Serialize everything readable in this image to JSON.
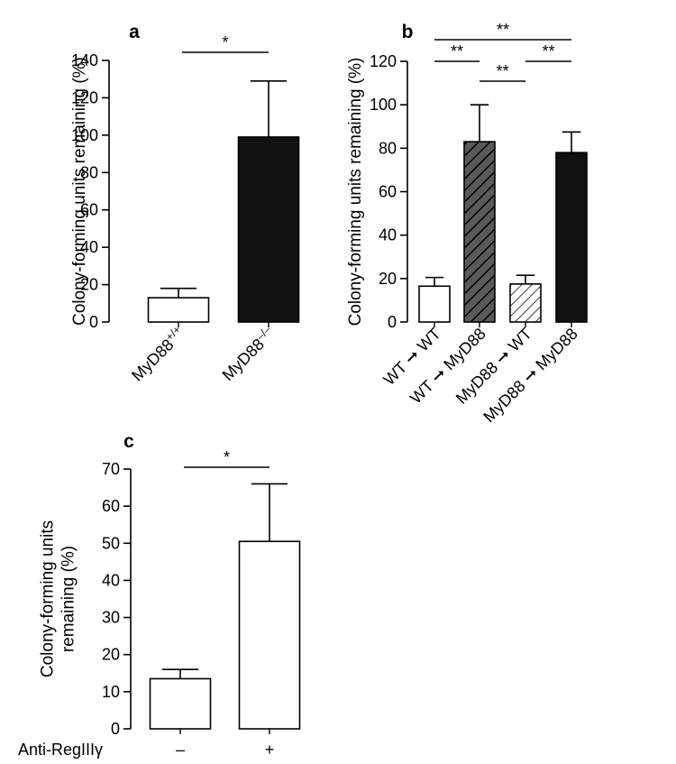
{
  "chart_data": [
    {
      "type": "bar",
      "panel": "a",
      "ylabel": "Colony-forming units remaining (%)",
      "ylabel_lines": [
        "Colony-forming units remaining (%)"
      ],
      "ylim": [
        0,
        140
      ],
      "yticks": [
        0,
        20,
        40,
        60,
        80,
        100,
        120,
        140
      ],
      "categories": [
        {
          "base": "MyD88",
          "sup": "+/+"
        },
        {
          "base": "MyD88",
          "sup": "–/–"
        }
      ],
      "values": [
        13,
        99
      ],
      "errors": [
        5,
        30
      ],
      "fills": [
        "white",
        "black"
      ],
      "significance": [
        {
          "from": 0,
          "to": 1,
          "label": "*"
        }
      ]
    },
    {
      "type": "bar",
      "panel": "b",
      "ylabel": "Colony-forming units remaining (%)",
      "ylabel_lines": [
        "Colony-forming units remaining (%)"
      ],
      "ylim": [
        0,
        120
      ],
      "yticks": [
        0,
        20,
        40,
        60,
        80,
        100,
        120
      ],
      "categories": [
        {
          "base": "WT ➞ WT"
        },
        {
          "base": "WT ➞ MyD88"
        },
        {
          "base": "MyD88 ➞ WT"
        },
        {
          "base": "MyD88 ➞ MyD88"
        }
      ],
      "values": [
        16.5,
        83,
        17.5,
        78
      ],
      "errors": [
        4,
        17,
        4,
        9.5
      ],
      "fills": [
        "white",
        "hatch-dark",
        "hatch-light",
        "black"
      ],
      "significance": [
        {
          "from": 0,
          "to": 3,
          "label": "**",
          "level": 3
        },
        {
          "from": 0,
          "to": 1,
          "label": "**",
          "level": 2
        },
        {
          "from": 2,
          "to": 3,
          "label": "**",
          "level": 2
        },
        {
          "from": 1,
          "to": 2,
          "label": "**",
          "level": 1
        }
      ]
    },
    {
      "type": "bar",
      "panel": "c",
      "ylabel": "Colony-forming units remaining (%)",
      "ylabel_lines": [
        "Colony-forming units",
        "remaining (%)"
      ],
      "ylim": [
        0,
        70
      ],
      "yticks": [
        0,
        10,
        20,
        30,
        40,
        50,
        60,
        70
      ],
      "row_label": "Anti-RegIIIγ",
      "categories": [
        {
          "base": "–"
        },
        {
          "base": "+"
        }
      ],
      "values": [
        13.5,
        50.5
      ],
      "errors": [
        2.5,
        15.5
      ],
      "fills": [
        "white",
        "white"
      ],
      "significance": [
        {
          "from": 0,
          "to": 1,
          "label": "*"
        }
      ]
    }
  ]
}
